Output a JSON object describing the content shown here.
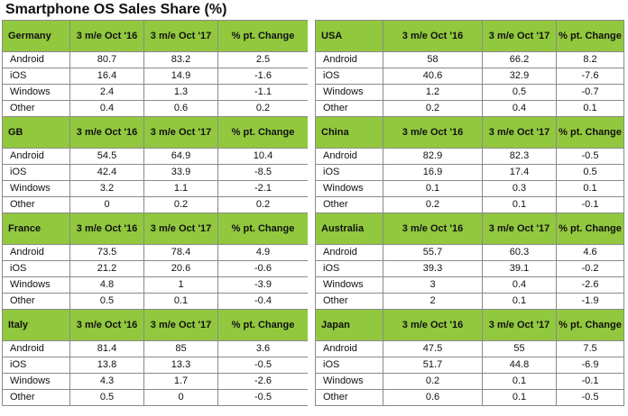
{
  "title": "Smartphone OS Sales Share (%)",
  "columns": [
    "3 m/e Oct '16",
    "3 m/e Oct '17",
    "% pt. Change"
  ],
  "accent_color": "#92c83e",
  "chart_data": {
    "type": "table",
    "title": "Smartphone OS Sales Share (%)",
    "columns": [
      "3 m/e Oct '16",
      "3 m/e Oct '17",
      "% pt. Change"
    ],
    "regions": [
      {
        "name": "Germany",
        "rows": [
          {
            "os": "Android",
            "v16": "80.7",
            "v17": "83.2",
            "chg": "2.5"
          },
          {
            "os": "iOS",
            "v16": "16.4",
            "v17": "14.9",
            "chg": "-1.6"
          },
          {
            "os": "Windows",
            "v16": "2.4",
            "v17": "1.3",
            "chg": "-1.1"
          },
          {
            "os": "Other",
            "v16": "0.4",
            "v17": "0.6",
            "chg": "0.2"
          }
        ]
      },
      {
        "name": "USA",
        "rows": [
          {
            "os": "Android",
            "v16": "58",
            "v17": "66.2",
            "chg": "8.2"
          },
          {
            "os": "iOS",
            "v16": "40.6",
            "v17": "32.9",
            "chg": "-7.6"
          },
          {
            "os": "Windows",
            "v16": "1.2",
            "v17": "0.5",
            "chg": "-0.7"
          },
          {
            "os": "Other",
            "v16": "0.2",
            "v17": "0.4",
            "chg": "0.1"
          }
        ]
      },
      {
        "name": "GB",
        "rows": [
          {
            "os": "Android",
            "v16": "54.5",
            "v17": "64.9",
            "chg": "10.4"
          },
          {
            "os": "iOS",
            "v16": "42.4",
            "v17": "33.9",
            "chg": "-8.5"
          },
          {
            "os": "Windows",
            "v16": "3.2",
            "v17": "1.1",
            "chg": "-2.1"
          },
          {
            "os": "Other",
            "v16": "0",
            "v17": "0.2",
            "chg": "0.2"
          }
        ]
      },
      {
        "name": "China",
        "rows": [
          {
            "os": "Android",
            "v16": "82.9",
            "v17": "82.3",
            "chg": "-0.5"
          },
          {
            "os": "iOS",
            "v16": "16.9",
            "v17": "17.4",
            "chg": "0.5"
          },
          {
            "os": "Windows",
            "v16": "0.1",
            "v17": "0.3",
            "chg": "0.1"
          },
          {
            "os": "Other",
            "v16": "0.2",
            "v17": "0.1",
            "chg": "-0.1"
          }
        ]
      },
      {
        "name": "France",
        "rows": [
          {
            "os": "Android",
            "v16": "73.5",
            "v17": "78.4",
            "chg": "4.9"
          },
          {
            "os": "iOS",
            "v16": "21.2",
            "v17": "20.6",
            "chg": "-0.6"
          },
          {
            "os": "Windows",
            "v16": "4.8",
            "v17": "1",
            "chg": "-3.9"
          },
          {
            "os": "Other",
            "v16": "0.5",
            "v17": "0.1",
            "chg": "-0.4"
          }
        ]
      },
      {
        "name": "Australia",
        "rows": [
          {
            "os": "Android",
            "v16": "55.7",
            "v17": "60.3",
            "chg": "4.6"
          },
          {
            "os": "iOS",
            "v16": "39.3",
            "v17": "39.1",
            "chg": "-0.2"
          },
          {
            "os": "Windows",
            "v16": "3",
            "v17": "0.4",
            "chg": "-2.6"
          },
          {
            "os": "Other",
            "v16": "2",
            "v17": "0.1",
            "chg": "-1.9"
          }
        ]
      },
      {
        "name": "Italy",
        "rows": [
          {
            "os": "Android",
            "v16": "81.4",
            "v17": "85",
            "chg": "3.6"
          },
          {
            "os": "iOS",
            "v16": "13.8",
            "v17": "13.3",
            "chg": "-0.5"
          },
          {
            "os": "Windows",
            "v16": "4.3",
            "v17": "1.7",
            "chg": "-2.6"
          },
          {
            "os": "Other",
            "v16": "0.5",
            "v17": "0",
            "chg": "-0.5"
          }
        ]
      },
      {
        "name": "Japan",
        "rows": [
          {
            "os": "Android",
            "v16": "47.5",
            "v17": "55",
            "chg": "7.5"
          },
          {
            "os": "iOS",
            "v16": "51.7",
            "v17": "44.8",
            "chg": "-6.9"
          },
          {
            "os": "Windows",
            "v16": "0.2",
            "v17": "0.1",
            "chg": "-0.1"
          },
          {
            "os": "Other",
            "v16": "0.6",
            "v17": "0.1",
            "chg": "-0.5"
          }
        ]
      }
    ]
  }
}
